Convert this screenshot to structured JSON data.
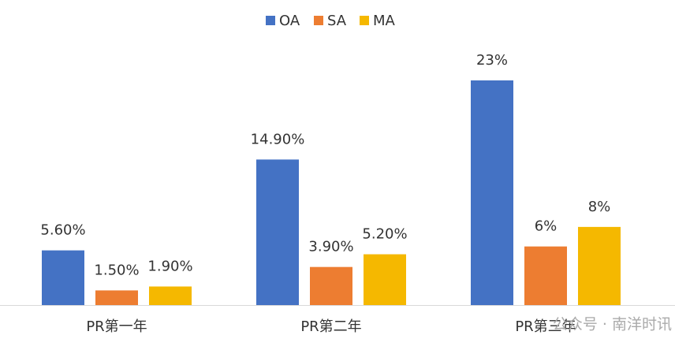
{
  "chart_data": {
    "type": "bar",
    "categories": [
      "PR第一年",
      "PR第二年",
      "PR第三年"
    ],
    "series": [
      {
        "name": "OA",
        "color": "#4472c4",
        "values": [
          5.6,
          14.9,
          23
        ],
        "value_labels": [
          "5.60%",
          "14.90%",
          "23%"
        ]
      },
      {
        "name": "SA",
        "color": "#ed7d31",
        "values": [
          1.5,
          3.9,
          6
        ],
        "value_labels": [
          "1.50%",
          "3.90%",
          "6%"
        ]
      },
      {
        "name": "MA",
        "color": "#f5b800",
        "values": [
          1.9,
          5.2,
          8
        ],
        "value_labels": [
          "1.90%",
          "5.20%",
          "8%"
        ]
      }
    ],
    "legend": "top",
    "watermark": "公众号 · 南洋时讯"
  }
}
